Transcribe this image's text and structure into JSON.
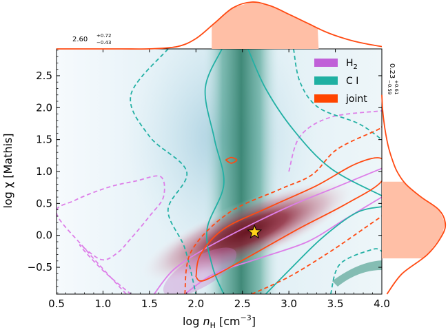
{
  "chart_data": {
    "type": "contour",
    "x_axis": {
      "label_prefix": "log",
      "label_var": "n",
      "label_sub": "H",
      "label_unit": "[cm",
      "label_unit_sup": "−3",
      "label_unit_end": "]",
      "lim": [
        0.5,
        4.0
      ],
      "ticks": [
        0.5,
        1.0,
        1.5,
        2.0,
        2.5,
        3.0,
        3.5,
        4.0
      ],
      "tick_labels": [
        "0.5",
        "1.0",
        "1.5",
        "2.0",
        "2.5",
        "3.0",
        "3.5",
        "4.0"
      ]
    },
    "y_axis": {
      "label": "log χ [Mathis]",
      "lim": [
        -0.92,
        2.92
      ],
      "ticks": [
        -0.5,
        0.0,
        0.5,
        1.0,
        1.5,
        2.0,
        2.5
      ],
      "tick_labels": [
        "−0.5",
        "0.0",
        "0.5",
        "1.0",
        "1.5",
        "2.0",
        "2.5"
      ]
    },
    "legend": {
      "position": "top-right",
      "entries": [
        {
          "label": "H",
          "sub": "2",
          "color": "#c060d8"
        },
        {
          "label": "C I",
          "sub": "",
          "color": "#1fb0a2"
        },
        {
          "label": "joint",
          "sub": "",
          "color": "#ff4500"
        }
      ]
    },
    "best_fit": {
      "x": 2.63,
      "y": 0.05
    },
    "x_marginal": {
      "median": 2.6,
      "hi": 3.32,
      "lo": 2.17,
      "median_text": "2.60",
      "err_hi": "+0.72",
      "err_lo": "−0.43",
      "curve_x": [
        0.5,
        0.8,
        1.2,
        1.5,
        1.8,
        2.0,
        2.2,
        2.4,
        2.6,
        2.8,
        3.0,
        3.2,
        3.4,
        3.6,
        3.8,
        4.0
      ],
      "curve_d": [
        0.0,
        0.0,
        0.0,
        0.002,
        0.05,
        0.22,
        0.55,
        0.88,
        1.0,
        0.92,
        0.74,
        0.55,
        0.36,
        0.22,
        0.12,
        0.05
      ]
    },
    "y_marginal": {
      "median": 0.23,
      "hi": 0.84,
      "lo": -0.36,
      "median_text": "0.23",
      "err_hi": "+0.61",
      "err_lo": "−0.59",
      "curve_y": [
        -0.92,
        -0.6,
        -0.3,
        0.0,
        0.2,
        0.4,
        0.6,
        0.8,
        1.0,
        1.2,
        1.4,
        1.6,
        1.8,
        2.0,
        2.2
      ],
      "curve_d": [
        0.08,
        0.32,
        0.72,
        0.95,
        1.0,
        0.9,
        0.62,
        0.38,
        0.24,
        0.16,
        0.1,
        0.06,
        0.03,
        0.01,
        0.0
      ]
    },
    "contours": {
      "h2_inner": [
        [
          1.55,
          -0.92
        ],
        [
          1.75,
          -0.55
        ],
        [
          2.05,
          -0.25
        ],
        [
          2.5,
          0.1
        ],
        [
          3.0,
          0.45
        ],
        [
          3.5,
          0.75
        ],
        [
          4.0,
          1.05
        ]
      ],
      "h2_inner_lower": [
        [
          1.88,
          -0.92
        ],
        [
          2.2,
          -0.6
        ],
        [
          2.7,
          -0.35
        ],
        [
          3.2,
          -0.1
        ],
        [
          3.6,
          0.25
        ],
        [
          4.0,
          0.6
        ]
      ],
      "h2_outer": [
        [
          1.25,
          -0.92
        ],
        [
          0.8,
          -0.2
        ],
        [
          0.5,
          0.35
        ],
        [
          0.7,
          0.55
        ],
        [
          1.05,
          0.75
        ],
        [
          1.35,
          0.85
        ],
        [
          1.62,
          0.92
        ],
        [
          1.65,
          0.6
        ],
        [
          1.5,
          0.3
        ],
        [
          1.3,
          -0.05
        ],
        [
          1.15,
          -0.28
        ],
        [
          0.98,
          -0.38
        ],
        [
          0.75,
          -0.15
        ],
        [
          1.0,
          -0.55
        ],
        [
          1.3,
          -0.92
        ]
      ],
      "h2_outer_top": [
        [
          3.0,
          1.0
        ],
        [
          3.12,
          1.55
        ],
        [
          3.45,
          1.85
        ],
        [
          4.0,
          1.95
        ]
      ],
      "ci_inner_left": [
        [
          2.28,
          2.92
        ],
        [
          2.1,
          2.3
        ],
        [
          2.2,
          1.5
        ],
        [
          2.3,
          0.8
        ],
        [
          2.12,
          0.1
        ],
        [
          2.18,
          -0.5
        ],
        [
          2.3,
          -0.92
        ]
      ],
      "ci_inner_right": [
        [
          2.56,
          2.92
        ],
        [
          2.75,
          2.3
        ],
        [
          3.05,
          1.65
        ],
        [
          3.45,
          1.05
        ],
        [
          4.0,
          0.62
        ]
      ],
      "ci_inner_bottom": [
        [
          2.75,
          -0.92
        ],
        [
          3.0,
          -0.55
        ],
        [
          3.35,
          -0.05
        ],
        [
          3.72,
          0.35
        ],
        [
          4.0,
          0.45
        ]
      ],
      "ci_outer_left": [
        [
          1.7,
          2.92
        ],
        [
          1.3,
          2.2
        ],
        [
          1.5,
          1.55
        ],
        [
          1.9,
          1.0
        ],
        [
          1.7,
          0.4
        ],
        [
          1.88,
          -0.2
        ],
        [
          2.0,
          -0.92
        ]
      ],
      "ci_outer_right": [
        [
          3.05,
          2.92
        ],
        [
          3.12,
          2.4
        ],
        [
          3.32,
          2.0
        ],
        [
          3.75,
          1.75
        ],
        [
          4.0,
          1.5
        ]
      ],
      "ci_outer_corner": [
        [
          3.45,
          -0.92
        ],
        [
          3.55,
          -0.45
        ],
        [
          3.9,
          -0.22
        ],
        [
          4.0,
          -0.25
        ]
      ],
      "joint_inner": [
        [
          2.0,
          -0.65
        ],
        [
          2.05,
          -0.3
        ],
        [
          2.3,
          0.1
        ],
        [
          2.8,
          0.45
        ],
        [
          3.3,
          0.78
        ],
        [
          3.72,
          1.12
        ],
        [
          4.0,
          1.2
        ],
        [
          4.0,
          0.85
        ],
        [
          3.6,
          0.48
        ],
        [
          3.1,
          0.1
        ],
        [
          2.55,
          -0.35
        ],
        [
          2.1,
          -0.7
        ],
        [
          2.0,
          -0.65
        ]
      ],
      "joint_outer": [
        [
          1.88,
          -0.92
        ],
        [
          1.95,
          -0.25
        ],
        [
          2.35,
          0.35
        ],
        [
          2.9,
          0.72
        ],
        [
          3.25,
          0.95
        ],
        [
          3.52,
          1.35
        ],
        [
          3.95,
          1.65
        ],
        [
          4.0,
          1.7
        ]
      ],
      "joint_outer_lower": [
        [
          2.6,
          -0.92
        ],
        [
          3.0,
          -0.65
        ],
        [
          3.45,
          -0.25
        ],
        [
          3.85,
          0.15
        ],
        [
          4.0,
          0.3
        ]
      ],
      "joint_blob": [
        [
          2.32,
          1.18
        ],
        [
          2.38,
          1.13
        ],
        [
          2.44,
          1.18
        ],
        [
          2.38,
          1.22
        ],
        [
          2.32,
          1.18
        ]
      ]
    }
  }
}
